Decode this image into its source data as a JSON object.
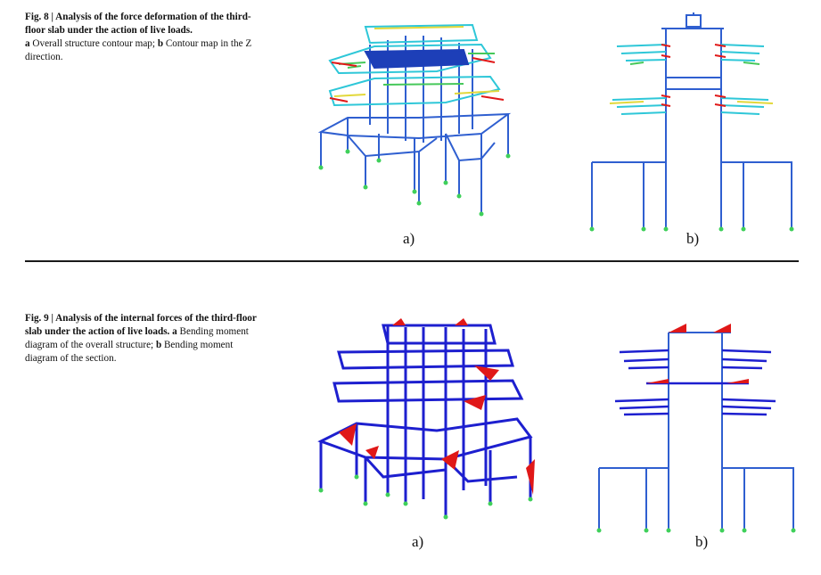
{
  "fig8": {
    "label": "Fig. 8 | Analysis of the force deformation of the third-floor slab under the action of live loads.",
    "part_a_letter": "a",
    "part_a_text": " Overall structure contour map; ",
    "part_b_letter": "b",
    "part_b_text": " Contour map in the Z direction.",
    "panel_a": "a)",
    "panel_b": "b)"
  },
  "fig9": {
    "label": "Fig. 9 | Analysis of the internal forces of the third-floor slab under the action of live loads.",
    "part_a_letter": "a",
    "part_a_text": " Bending moment diagram of the overall structure; ",
    "part_b_letter": "b",
    "part_b_text": " Bending moment diagram of the section.",
    "panel_a": "a)",
    "panel_b": "b)"
  },
  "colors": {
    "frame_blue": "#2f5fd0",
    "moment_blue": "#1d1fcf",
    "moment_red": "#e01818",
    "contour_cyan": "#2ec7d8",
    "contour_green": "#46c85a",
    "contour_yellow": "#e2d83a",
    "support_green": "#3fd05a"
  }
}
